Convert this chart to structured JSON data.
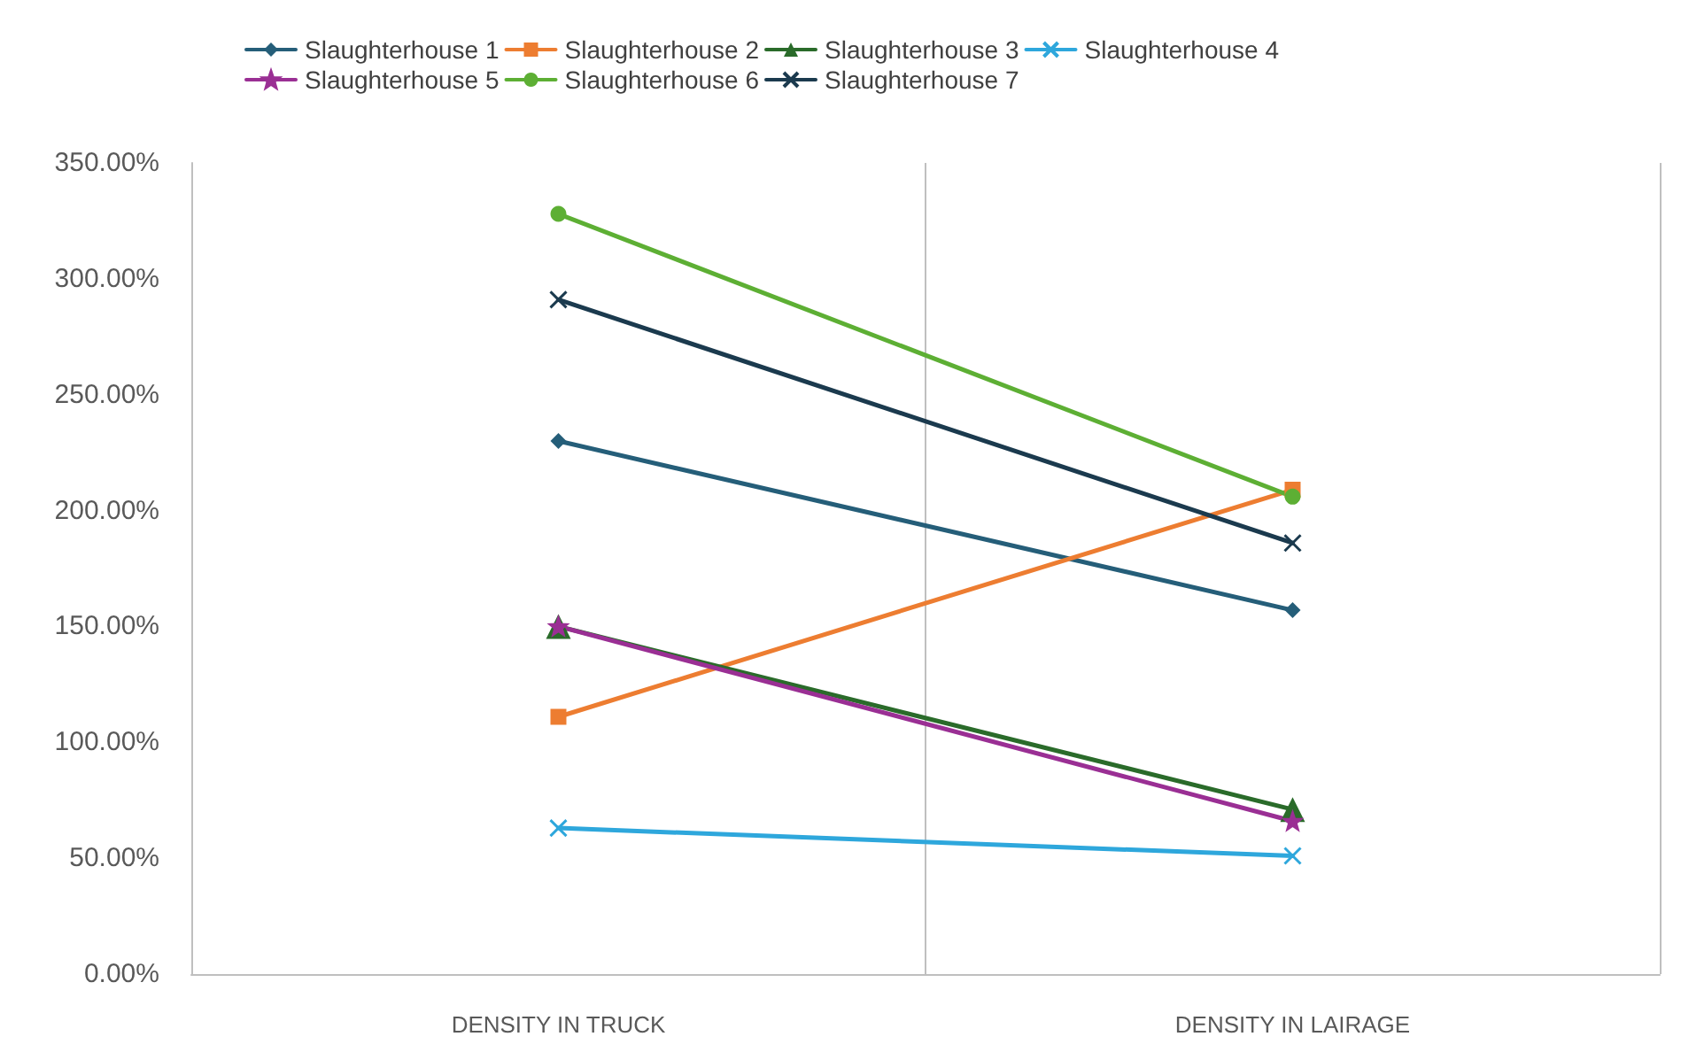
{
  "chart_data": {
    "type": "line",
    "categories": [
      "DENSITY IN TRUCK",
      "DENSITY IN LAIRAGE"
    ],
    "series": [
      {
        "name": "Slaughterhouse 1",
        "color": "#255e79",
        "marker": "diamond",
        "values": [
          230,
          157
        ]
      },
      {
        "name": "Slaughterhouse 2",
        "color": "#ed7d31",
        "marker": "square",
        "values": [
          111,
          209
        ]
      },
      {
        "name": "Slaughterhouse 3",
        "color": "#2a6b2a",
        "marker": "triangle",
        "values": [
          150,
          71
        ]
      },
      {
        "name": "Slaughterhouse 4",
        "color": "#2ea7dc",
        "marker": "cross",
        "values": [
          63,
          51
        ]
      },
      {
        "name": "Slaughterhouse 5",
        "color": "#9a2f94",
        "marker": "star",
        "values": [
          150,
          66
        ]
      },
      {
        "name": "Slaughterhouse 6",
        "color": "#5daf34",
        "marker": "circle",
        "values": [
          328,
          206
        ]
      },
      {
        "name": "Slaughterhouse 7",
        "color": "#1b3a4e",
        "marker": "cross",
        "values": [
          291,
          186
        ]
      }
    ],
    "ylim": [
      0,
      350
    ],
    "yticks": [
      {
        "value": 0,
        "label": "0.00%"
      },
      {
        "value": 50,
        "label": "50.00%"
      },
      {
        "value": 100,
        "label": "100.00%"
      },
      {
        "value": 150,
        "label": "150.00%"
      },
      {
        "value": 200,
        "label": "200.00%"
      },
      {
        "value": 250,
        "label": "250.00%"
      },
      {
        "value": 300,
        "label": "300.00%"
      },
      {
        "value": 350,
        "label": "350.00%"
      }
    ],
    "grid": "x",
    "legend": "top",
    "line_style": "solid"
  }
}
